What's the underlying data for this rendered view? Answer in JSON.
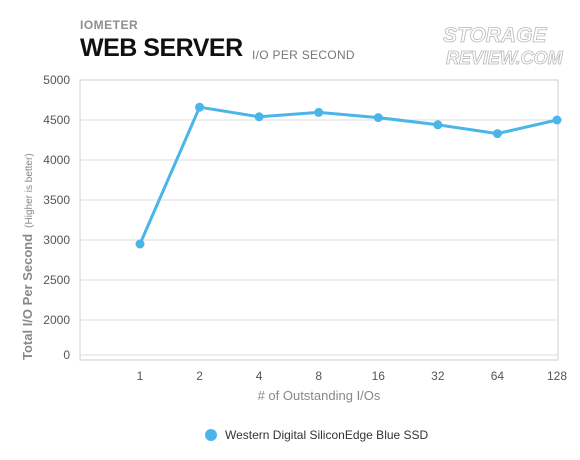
{
  "header": {
    "kicker": "IOMETER",
    "title": "WEB SERVER",
    "subtitle": "I/O PER SECOND"
  },
  "logo": {
    "line1": "STORAGE",
    "line2": "REVIEW.COM"
  },
  "colors": {
    "series": "#4ab5e8",
    "grid": "#dddddd",
    "axis_text": "#555555",
    "label_text": "#888888"
  },
  "chart_data": {
    "type": "line",
    "xlabel": "# of Outstanding I/Os",
    "ylabel_main": "Total I/O Per Second",
    "ylabel_note": "(Higher is better)",
    "categories": [
      "1",
      "2",
      "4",
      "8",
      "16",
      "32",
      "64",
      "128"
    ],
    "yticks": [
      "5000",
      "4500",
      "4000",
      "3500",
      "3000",
      "2500",
      "2000",
      "0"
    ],
    "ylim": [
      0,
      5000
    ],
    "y_axis_note": "axis is broken: ticks jump from 2000 to 0",
    "grid": true,
    "legend_position": "bottom",
    "series": [
      {
        "name": "Western Digital SiliconEdge Blue SSD",
        "values": [
          2950,
          4660,
          4540,
          4595,
          4530,
          4440,
          4330,
          4500
        ]
      }
    ]
  }
}
